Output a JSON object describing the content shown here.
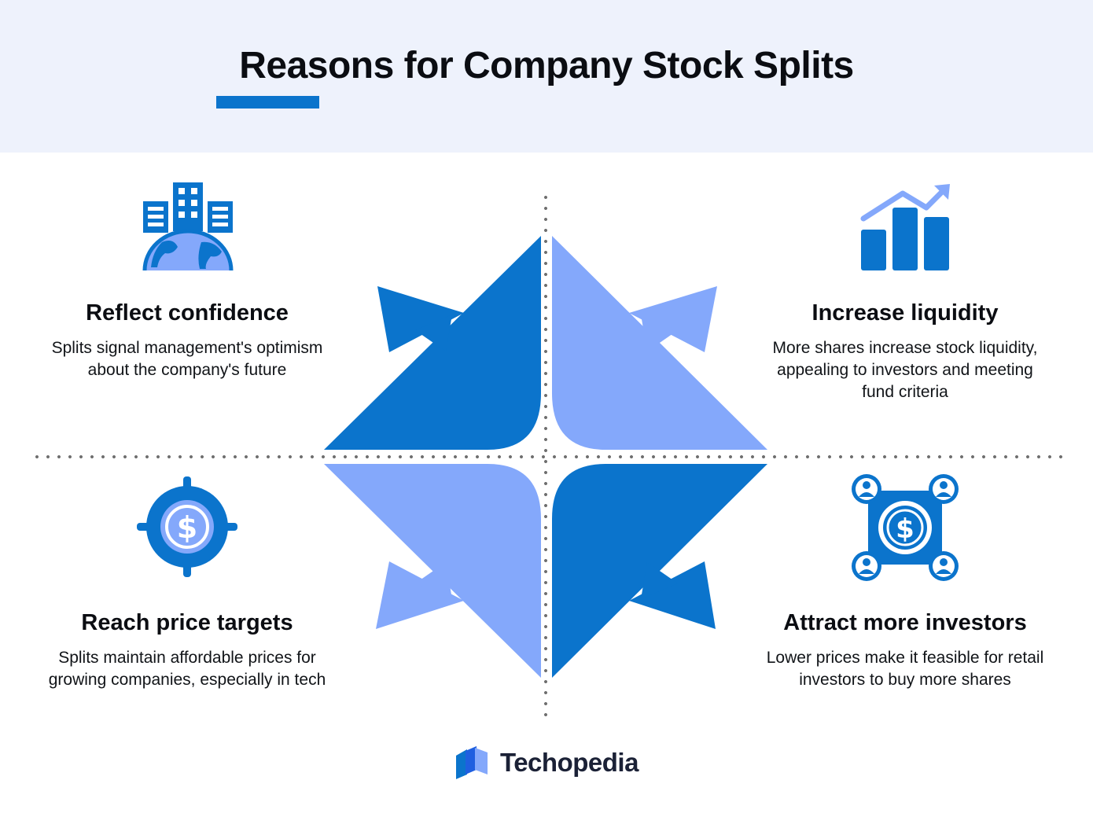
{
  "header": {
    "title": "Reasons for Company Stock Splits"
  },
  "colors": {
    "header_bg": "#eef2fc",
    "primary_blue": "#0b74cc",
    "light_blue": "#84a8fb",
    "dark_text": "#0b0d12"
  },
  "quadrants": {
    "top_left": {
      "icon": "buildings-globe-icon",
      "title": "Reflect confidence",
      "text": "Splits signal management's optimism about the company's future"
    },
    "top_right": {
      "icon": "bar-chart-growth-icon",
      "title": "Increase liquidity",
      "text": "More shares increase stock liquidity, appealing to investors and meeting fund criteria"
    },
    "bottom_left": {
      "icon": "dollar-target-icon",
      "title": "Reach price targets",
      "text": "Splits maintain affordable prices for growing companies, especially in tech"
    },
    "bottom_right": {
      "icon": "investors-network-icon",
      "title": "Attract more investors",
      "text": "Lower prices make it feasible for retail investors to buy more shares"
    }
  },
  "brand": {
    "logo": "techopedia-logo-icon",
    "name": "Techopedia"
  }
}
